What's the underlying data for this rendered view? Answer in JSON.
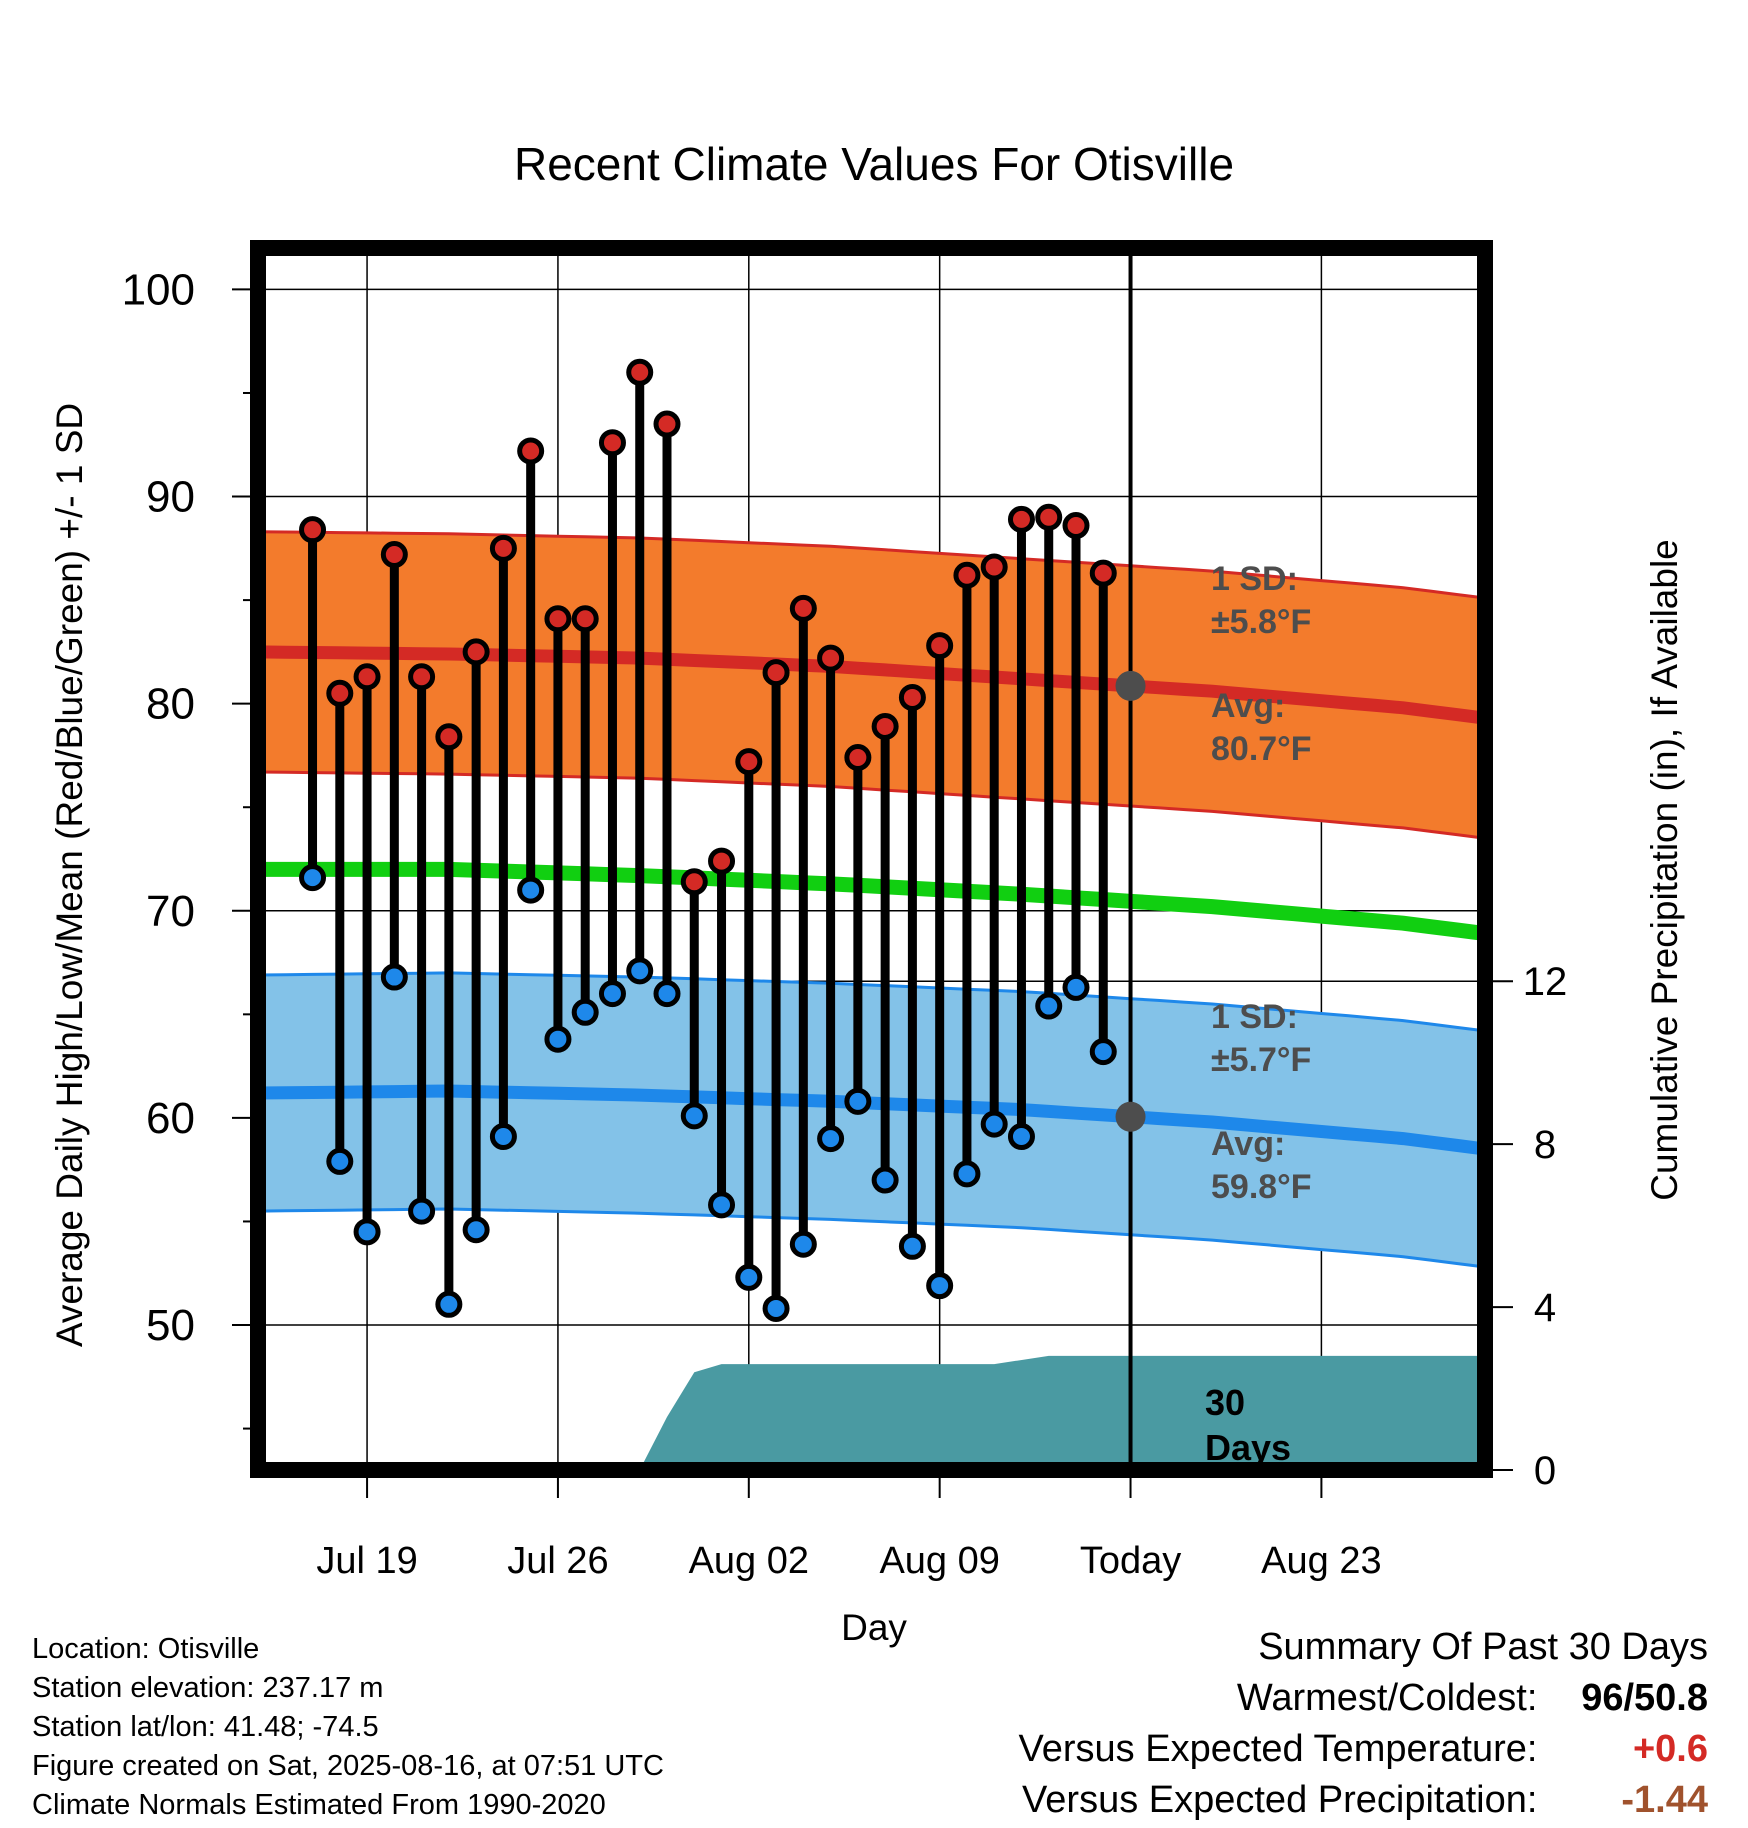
{
  "chart_data": {
    "type": "line",
    "title": "Recent Climate Values For Otisville",
    "xlabel": "Day",
    "ylabel": "Average Daily High/Low/Mean (Red/Blue/Green) +/- 1 SD",
    "y2label": "Cumulative Precipitation (in), If Available",
    "ylim": [
      43,
      102
    ],
    "yticks": [
      "100",
      "90",
      "80",
      "70",
      "60",
      "50"
    ],
    "y2lim": [
      0,
      30
    ],
    "y2ticks": [
      "12",
      "8",
      "4",
      "0"
    ],
    "xlim": [
      "Jul 15",
      "Aug 29"
    ],
    "xticks": [
      "Jul 19",
      "Jul 26",
      "Aug 02",
      "Aug 09",
      "Today",
      "Aug 23"
    ],
    "grid": true,
    "days": [
      "Jul 17",
      "Jul 18",
      "Jul 19",
      "Jul 20",
      "Jul 21",
      "Jul 22",
      "Jul 23",
      "Jul 24",
      "Jul 25",
      "Jul 26",
      "Jul 27",
      "Jul 28",
      "Jul 29",
      "Jul 30",
      "Jul 31",
      "Aug 01",
      "Aug 02",
      "Aug 03",
      "Aug 04",
      "Aug 05",
      "Aug 06",
      "Aug 07",
      "Aug 08",
      "Aug 09",
      "Aug 10",
      "Aug 11",
      "Aug 12",
      "Aug 13",
      "Aug 14",
      "Aug 15"
    ],
    "daily_high": [
      88.4,
      80.5,
      81.3,
      87.2,
      81.3,
      78.4,
      82.5,
      87.5,
      92.2,
      84.1,
      84.1,
      92.6,
      96.0,
      93.5,
      71.4,
      72.4,
      77.2,
      81.5,
      84.6,
      82.2,
      77.4,
      78.9,
      80.3,
      82.8,
      86.2,
      86.6,
      88.9,
      89.0,
      88.6,
      86.3
    ],
    "daily_low": [
      71.6,
      57.9,
      54.5,
      66.8,
      55.5,
      51.0,
      54.6,
      59.1,
      71.0,
      63.8,
      65.1,
      66.0,
      67.1,
      66.0,
      60.1,
      55.8,
      52.3,
      50.8,
      53.9,
      59.0,
      60.8,
      57.0,
      53.8,
      51.9,
      57.3,
      59.7,
      59.1,
      65.4,
      66.3,
      63.2
    ],
    "normals": {
      "x": [
        "Jul 15",
        "Jul 22",
        "Jul 29",
        "Aug 05",
        "Aug 12",
        "Aug 19",
        "Aug 26",
        "Aug 29"
      ],
      "high_mean": [
        82.5,
        82.4,
        82.2,
        81.8,
        81.2,
        80.6,
        79.8,
        79.3
      ],
      "low_mean": [
        61.2,
        61.3,
        61.1,
        60.8,
        60.4,
        59.8,
        59.0,
        58.5
      ],
      "daily_mean": [
        72.0,
        72.0,
        71.7,
        71.3,
        70.8,
        70.2,
        69.4,
        68.9
      ],
      "high_sd": 5.8,
      "low_sd": 5.7
    },
    "cumulative_precip": {
      "x": [
        "Jul 15",
        "Jul 29",
        "Jul 30",
        "Jul 31",
        "Aug 01",
        "Aug 11",
        "Aug 13",
        "Aug 29"
      ],
      "values": [
        0,
        0,
        1.3,
        2.4,
        2.6,
        2.6,
        2.8,
        2.8
      ]
    },
    "annotations": {
      "high_sd_label": "1 SD:",
      "high_sd_value": "±5.8°F",
      "high_avg_label": "Avg:",
      "high_avg_value": "80.7°F",
      "low_sd_label": "1 SD:",
      "low_sd_value": "±5.7°F",
      "low_avg_label": "Avg:",
      "low_avg_value": "59.8°F",
      "period_number": "30",
      "period_unit": "Days"
    },
    "colors": {
      "high_band": "#f37b2c",
      "high_line": "#d42a25",
      "low_band": "#83c2e8",
      "low_line": "#1e88ea",
      "mean_line": "#11cf11",
      "precip": "#4a9aa2",
      "high_marker": "#d42a25",
      "low_marker": "#1e88ea",
      "today_marker": "#4d4d4d"
    }
  },
  "footer": {
    "location": "Location: Otisville",
    "elevation": "Station elevation: 237.17 m",
    "latlon": "Station lat/lon: 41.48; -74.5",
    "created": "Figure created on Sat, 2025-08-16, at 07:51 UTC",
    "normals": "Climate Normals Estimated From 1990-2020"
  },
  "summary": {
    "title": "Summary Of Past 30 Days",
    "warmest_coldest_label": "Warmest/Coldest:",
    "warmest": "96",
    "slash": "/",
    "coldest": "50.8",
    "temp_label": "Versus Expected Temperature:",
    "temp_value": "+0.6",
    "temp_color": "#d42a25",
    "precip_label": "Versus Expected Precipitation:",
    "precip_value": "-1.44",
    "precip_color": "#a0522d"
  }
}
